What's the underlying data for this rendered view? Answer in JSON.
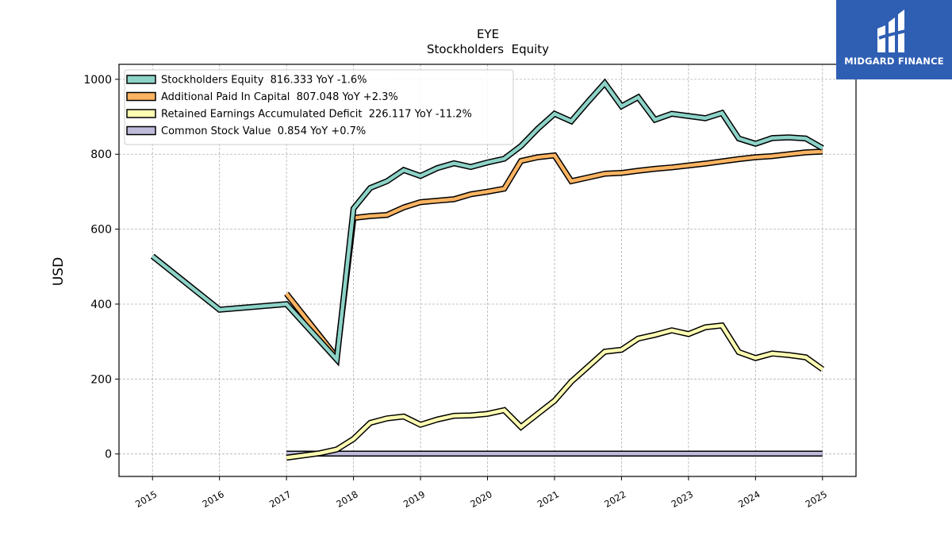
{
  "brand": {
    "name": "MIDGARD FINANCE",
    "bg_color": "#2f5fb3"
  },
  "chart_data": {
    "type": "line",
    "title": "EYE",
    "subtitle": "Stockholders  Equity",
    "xlabel": "",
    "ylabel": "USD",
    "xlim": [
      2014.5,
      2025.5
    ],
    "ylim": [
      -60,
      1040
    ],
    "xticks": [
      2015,
      2016,
      2017,
      2018,
      2019,
      2020,
      2021,
      2022,
      2023,
      2024,
      2025
    ],
    "yticks": [
      0,
      200,
      400,
      600,
      800,
      1000
    ],
    "grid": true,
    "legend_position": "upper-left",
    "series": [
      {
        "name": "Stockholders Equity  816.333 YoY -1.6%",
        "color": "#8dd3c7",
        "points": [
          [
            2015.0,
            528
          ],
          [
            2016.0,
            385
          ],
          [
            2017.0,
            400
          ],
          [
            2017.75,
            252
          ],
          [
            2018.0,
            655
          ],
          [
            2018.25,
            710
          ],
          [
            2018.5,
            728
          ],
          [
            2018.75,
            758
          ],
          [
            2019.0,
            742
          ],
          [
            2019.25,
            763
          ],
          [
            2019.5,
            776
          ],
          [
            2019.75,
            766
          ],
          [
            2020.0,
            778
          ],
          [
            2020.25,
            788
          ],
          [
            2020.5,
            822
          ],
          [
            2020.75,
            868
          ],
          [
            2021.0,
            908
          ],
          [
            2021.25,
            888
          ],
          [
            2021.5,
            940
          ],
          [
            2021.75,
            990
          ],
          [
            2022.0,
            928
          ],
          [
            2022.25,
            952
          ],
          [
            2022.5,
            892
          ],
          [
            2022.75,
            908
          ],
          [
            2023.0,
            902
          ],
          [
            2023.25,
            896
          ],
          [
            2023.5,
            910
          ],
          [
            2023.75,
            842
          ],
          [
            2024.0,
            828
          ],
          [
            2024.25,
            843
          ],
          [
            2024.5,
            845
          ],
          [
            2024.75,
            842
          ],
          [
            2025.0,
            816.333
          ]
        ]
      },
      {
        "name": "Additional Paid In Capital  807.048 YoY +2.3%",
        "color": "#fdb462",
        "points": [
          [
            2017.0,
            428
          ],
          [
            2017.75,
            258
          ],
          [
            2018.0,
            630
          ],
          [
            2018.25,
            635
          ],
          [
            2018.5,
            638
          ],
          [
            2018.75,
            658
          ],
          [
            2019.0,
            672
          ],
          [
            2019.25,
            676
          ],
          [
            2019.5,
            680
          ],
          [
            2019.75,
            693
          ],
          [
            2020.0,
            700
          ],
          [
            2020.25,
            708
          ],
          [
            2020.5,
            782
          ],
          [
            2020.75,
            792
          ],
          [
            2021.0,
            797
          ],
          [
            2021.25,
            728
          ],
          [
            2021.5,
            738
          ],
          [
            2021.75,
            748
          ],
          [
            2022.0,
            750
          ],
          [
            2022.25,
            756
          ],
          [
            2022.5,
            761
          ],
          [
            2022.75,
            765
          ],
          [
            2023.0,
            770
          ],
          [
            2023.25,
            775
          ],
          [
            2023.5,
            781
          ],
          [
            2023.75,
            787
          ],
          [
            2024.0,
            792
          ],
          [
            2024.25,
            795
          ],
          [
            2024.5,
            800
          ],
          [
            2024.75,
            805
          ],
          [
            2025.0,
            807.048
          ]
        ]
      },
      {
        "name": "Retained Earnings Accumulated Deficit  226.117 YoY -11.2%",
        "color": "#ffffb3",
        "points": [
          [
            2017.0,
            -10
          ],
          [
            2017.5,
            2
          ],
          [
            2017.75,
            12
          ],
          [
            2018.0,
            40
          ],
          [
            2018.25,
            83
          ],
          [
            2018.5,
            95
          ],
          [
            2018.75,
            100
          ],
          [
            2019.0,
            78
          ],
          [
            2019.25,
            92
          ],
          [
            2019.5,
            102
          ],
          [
            2019.75,
            103
          ],
          [
            2020.0,
            107
          ],
          [
            2020.25,
            117
          ],
          [
            2020.5,
            72
          ],
          [
            2020.75,
            107
          ],
          [
            2021.0,
            142
          ],
          [
            2021.25,
            193
          ],
          [
            2021.5,
            233
          ],
          [
            2021.75,
            273
          ],
          [
            2022.0,
            278
          ],
          [
            2022.25,
            308
          ],
          [
            2022.5,
            318
          ],
          [
            2022.75,
            330
          ],
          [
            2023.0,
            320
          ],
          [
            2023.25,
            338
          ],
          [
            2023.5,
            343
          ],
          [
            2023.75,
            272
          ],
          [
            2024.0,
            256
          ],
          [
            2024.25,
            268
          ],
          [
            2024.5,
            264
          ],
          [
            2024.75,
            258
          ],
          [
            2025.0,
            226.117
          ]
        ]
      },
      {
        "name": "Common Stock Value  0.854 YoY +0.7%",
        "color": "#bebada",
        "points": [
          [
            2017.0,
            0.85
          ],
          [
            2018.0,
            0.85
          ],
          [
            2019.0,
            0.85
          ],
          [
            2020.0,
            0.85
          ],
          [
            2021.0,
            0.85
          ],
          [
            2022.0,
            0.85
          ],
          [
            2023.0,
            0.85
          ],
          [
            2024.0,
            0.85
          ],
          [
            2025.0,
            0.854
          ]
        ]
      }
    ]
  }
}
